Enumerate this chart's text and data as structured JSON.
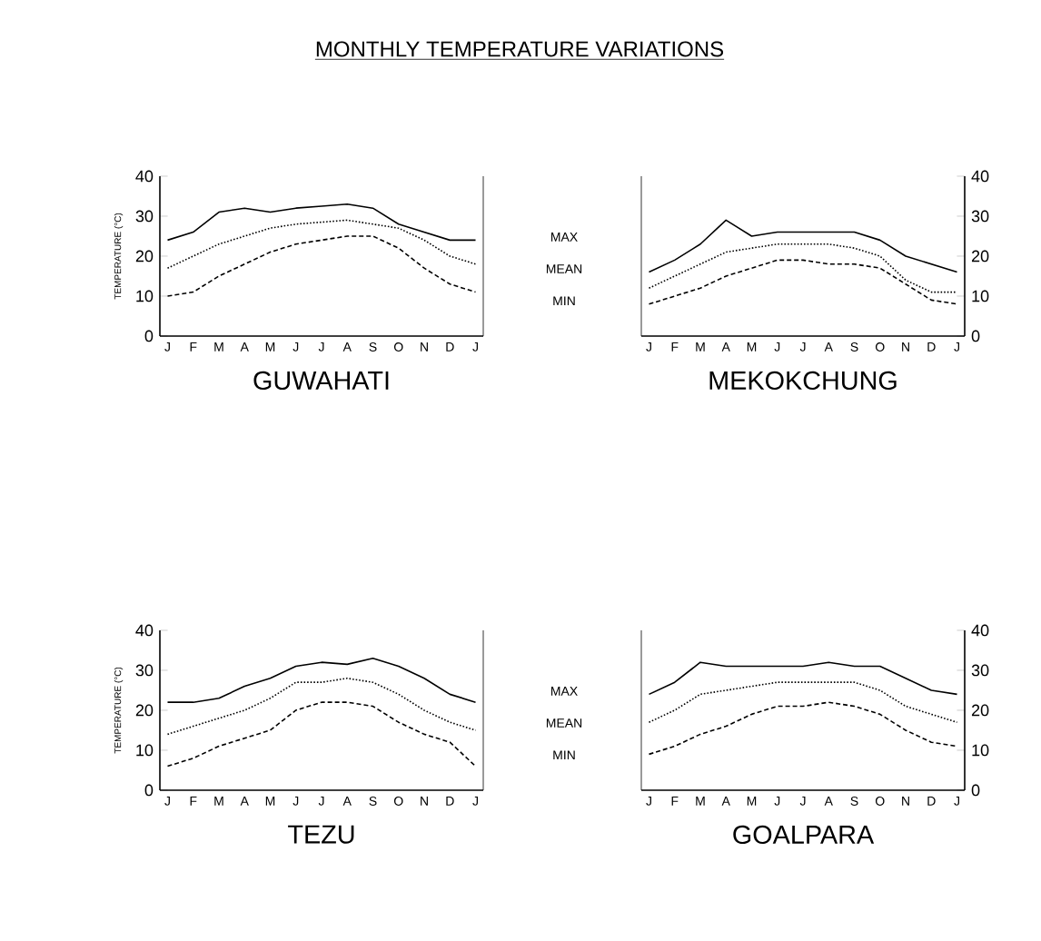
{
  "chart_data": [
    {
      "type": "line",
      "title": "MONTHLY TEMPERATURE VARIATIONS",
      "xlabel": "GUWAHATI",
      "ylabel": "TEMPERATURE (°C)",
      "categories": [
        "J",
        "F",
        "M",
        "A",
        "M",
        "J",
        "J",
        "A",
        "S",
        "O",
        "N",
        "D",
        "J"
      ],
      "ylim": [
        0,
        40
      ],
      "yticks": [
        0,
        10,
        20,
        30,
        40
      ],
      "marker": "none",
      "annotations": [
        "MAX",
        "MEAN",
        "MIN"
      ],
      "series": [
        {
          "color": "#000000",
          "line_style": "solid",
          "values": [
            24,
            26,
            31,
            32,
            31,
            32,
            32.5,
            33,
            32,
            28,
            26,
            24,
            24
          ]
        },
        {
          "color": "#000000",
          "line_style": "dotted",
          "values": [
            17,
            20,
            23,
            25,
            27,
            28,
            28.5,
            29,
            28,
            27,
            24,
            20,
            18
          ]
        },
        {
          "color": "#000000",
          "line_style": "dashed",
          "values": [
            10,
            11,
            15,
            18,
            21,
            23,
            24,
            25,
            25,
            22,
            17,
            13,
            11
          ]
        }
      ]
    },
    {
      "type": "line",
      "xlabel": "MEKOKCHUNG",
      "categories": [
        "J",
        "F",
        "M",
        "A",
        "M",
        "J",
        "J",
        "A",
        "S",
        "O",
        "N",
        "D",
        "J"
      ],
      "ylim": [
        0,
        40
      ],
      "yticks": [
        0,
        10,
        20,
        30,
        40
      ],
      "marker": "none",
      "series": [
        {
          "color": "#000000",
          "line_style": "solid",
          "values": [
            16,
            19,
            23,
            29,
            25,
            26,
            26,
            26,
            26,
            24,
            20,
            18,
            16
          ]
        },
        {
          "color": "#000000",
          "line_style": "dotted",
          "values": [
            12,
            15,
            18,
            21,
            22,
            23,
            23,
            23,
            22,
            20,
            14,
            11,
            11
          ]
        },
        {
          "color": "#000000",
          "line_style": "dashed",
          "values": [
            8,
            10,
            12,
            15,
            17,
            19,
            19,
            18,
            18,
            17,
            13,
            9,
            8
          ]
        }
      ]
    },
    {
      "type": "line",
      "xlabel": "TEZU",
      "ylabel": "TEMPERATURE (°C)",
      "categories": [
        "J",
        "F",
        "M",
        "A",
        "M",
        "J",
        "J",
        "A",
        "S",
        "O",
        "N",
        "D",
        "J"
      ],
      "ylim": [
        0,
        40
      ],
      "yticks": [
        0,
        10,
        20,
        30,
        40
      ],
      "marker": "none",
      "annotations": [
        "MAX",
        "MEAN",
        "MIN"
      ],
      "series": [
        {
          "color": "#000000",
          "line_style": "solid",
          "values": [
            22,
            22,
            23,
            26,
            28,
            31,
            32,
            31.5,
            33,
            31,
            28,
            24,
            22
          ]
        },
        {
          "color": "#000000",
          "line_style": "dotted",
          "values": [
            14,
            16,
            18,
            20,
            23,
            27,
            27,
            28,
            27,
            24,
            20,
            17,
            15
          ]
        },
        {
          "color": "#000000",
          "line_style": "dashed",
          "values": [
            6,
            8,
            11,
            13,
            15,
            20,
            22,
            22,
            21,
            17,
            14,
            12,
            6
          ]
        }
      ]
    },
    {
      "type": "line",
      "xlabel": "GOALPARA",
      "categories": [
        "J",
        "F",
        "M",
        "A",
        "M",
        "J",
        "J",
        "A",
        "S",
        "O",
        "N",
        "D",
        "J"
      ],
      "ylim": [
        0,
        40
      ],
      "yticks": [
        0,
        10,
        20,
        30,
        40
      ],
      "marker": "none",
      "series": [
        {
          "color": "#000000",
          "line_style": "solid",
          "values": [
            24,
            27,
            32,
            31,
            31,
            31,
            31,
            32,
            31,
            31,
            28,
            25,
            24
          ]
        },
        {
          "color": "#000000",
          "line_style": "dotted",
          "values": [
            17,
            20,
            24,
            25,
            26,
            27,
            27,
            27,
            27,
            25,
            21,
            19,
            17
          ]
        },
        {
          "color": "#000000",
          "line_style": "dashed",
          "values": [
            9,
            11,
            14,
            16,
            19,
            21,
            21,
            22,
            21,
            19,
            15,
            12,
            11
          ]
        }
      ]
    }
  ]
}
